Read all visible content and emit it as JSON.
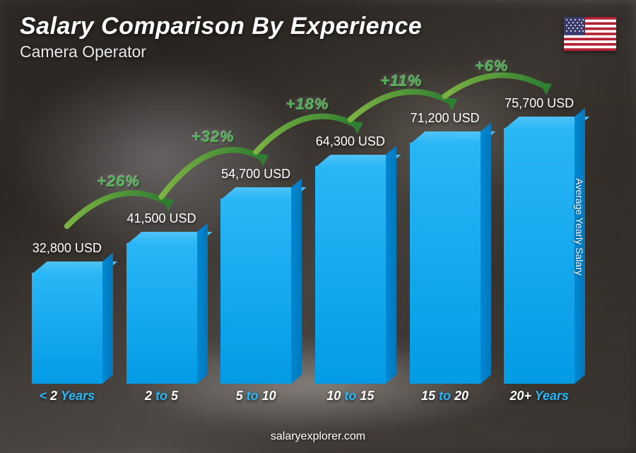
{
  "title": "Salary Comparison By Experience",
  "subtitle": "Camera Operator",
  "axis_label": "Average Yearly Salary",
  "footer": "salaryexplorer.com",
  "flag": {
    "country": "United States"
  },
  "chart": {
    "type": "bar-3d",
    "bar_color_top": "#4fc3f7",
    "bar_color_front": "#29b6f6",
    "bar_color_side": "#0277bd",
    "value_suffix": " USD",
    "max_value": 80000,
    "bars": [
      {
        "category_prefix": "< ",
        "category_num": "2",
        "category_suffix": " Years",
        "value": 32800,
        "label": "32,800 USD"
      },
      {
        "category_prefix": "",
        "category_num": "2",
        "category_mid": " to ",
        "category_num2": "5",
        "category_suffix": "",
        "value": 41500,
        "label": "41,500 USD"
      },
      {
        "category_prefix": "",
        "category_num": "5",
        "category_mid": " to ",
        "category_num2": "10",
        "category_suffix": "",
        "value": 54700,
        "label": "54,700 USD"
      },
      {
        "category_prefix": "",
        "category_num": "10",
        "category_mid": " to ",
        "category_num2": "15",
        "category_suffix": "",
        "value": 64300,
        "label": "64,300 USD"
      },
      {
        "category_prefix": "",
        "category_num": "15",
        "category_mid": " to ",
        "category_num2": "20",
        "category_suffix": "",
        "value": 71200,
        "label": "71,200 USD"
      },
      {
        "category_prefix": "",
        "category_num": "20+",
        "category_suffix": " Years",
        "value": 75700,
        "label": "75,700 USD"
      }
    ],
    "increases": [
      {
        "from": 0,
        "to": 1,
        "pct": "+26%"
      },
      {
        "from": 1,
        "to": 2,
        "pct": "+32%"
      },
      {
        "from": 2,
        "to": 3,
        "pct": "+18%"
      },
      {
        "from": 3,
        "to": 4,
        "pct": "+11%"
      },
      {
        "from": 4,
        "to": 5,
        "pct": "+6%"
      }
    ],
    "pct_color": "#4caf50",
    "arc_stroke": "#43a047",
    "title_color": "#ffffff",
    "title_fontsize": 34,
    "subtitle_fontsize": 23,
    "value_fontsize": 18,
    "xlabel_fontsize": 18,
    "xlabel_color": "#29b6f6",
    "background": "blurred-photo-dark"
  }
}
